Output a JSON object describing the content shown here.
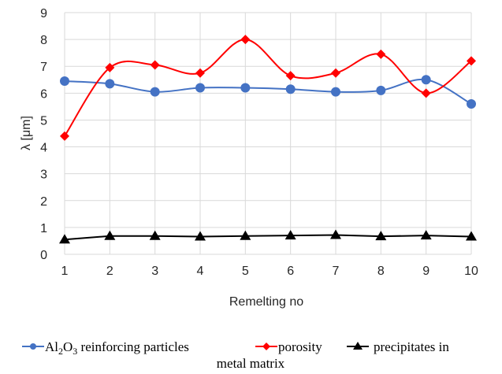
{
  "chart_data": {
    "type": "line",
    "xlabel": "Remelting no",
    "ylabel": "λ [μm]",
    "x": [
      1,
      2,
      3,
      4,
      5,
      6,
      7,
      8,
      9,
      10
    ],
    "xlim": [
      1,
      10
    ],
    "ylim": [
      0,
      9
    ],
    "yticks": [
      0,
      1,
      2,
      3,
      4,
      5,
      6,
      7,
      8,
      9
    ],
    "grid": true,
    "legend_position": "bottom",
    "series": [
      {
        "name_main": "Al",
        "name_sub1": "2",
        "name_mid": "O",
        "name_sub2": "3",
        "name_rest": " reinforcing particles",
        "color": "#4472c4",
        "marker": "circle",
        "values": [
          6.45,
          6.35,
          6.05,
          6.2,
          6.2,
          6.15,
          6.05,
          6.1,
          6.5,
          5.6
        ]
      },
      {
        "name": "porosity",
        "color": "#ff0000",
        "marker": "diamond",
        "values": [
          4.4,
          6.95,
          7.05,
          6.75,
          8.0,
          6.65,
          6.75,
          7.45,
          6.0,
          7.2
        ]
      },
      {
        "name": "precipitates in",
        "name_line2": "metal matrix",
        "color": "#000000",
        "marker": "triangle",
        "values": [
          0.55,
          0.68,
          0.68,
          0.66,
          0.68,
          0.7,
          0.72,
          0.67,
          0.7,
          0.66
        ]
      }
    ]
  }
}
